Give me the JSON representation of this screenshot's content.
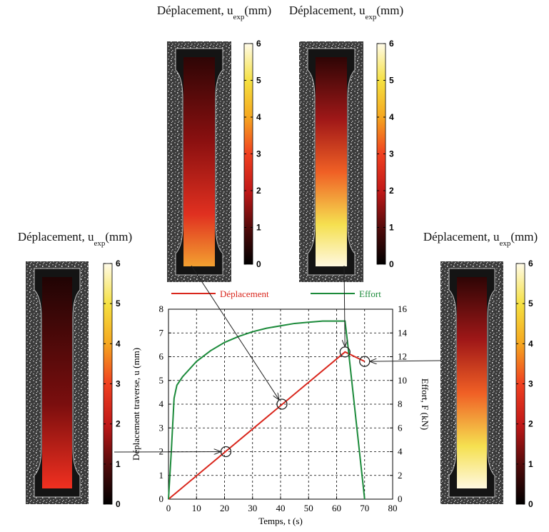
{
  "chart_data": {
    "type": "line",
    "x_label": "Temps, t (s)",
    "y_label": "Déplacement traverse, u (mm)",
    "y2_label": "Effort, F (kN)",
    "xlim": [
      0,
      80
    ],
    "xticks": [
      0,
      10,
      20,
      30,
      40,
      50,
      60,
      70,
      80
    ],
    "ylim": [
      0,
      8
    ],
    "yticks": [
      0,
      1,
      2,
      3,
      4,
      5,
      6,
      7,
      8
    ],
    "y2lim": [
      0,
      16
    ],
    "y2ticks": [
      0,
      2,
      4,
      6,
      8,
      10,
      12,
      14,
      16
    ],
    "grid": true,
    "series": [
      {
        "name": "Déplacement",
        "color": "#d9261c",
        "x": [
          0,
          63,
          70
        ],
        "values": [
          0,
          6.2,
          5.8
        ]
      },
      {
        "name": "Effort",
        "color": "#1b8a3a",
        "axis": "y2",
        "x": [
          0,
          1,
          2,
          3,
          5,
          10,
          15,
          20,
          25,
          30,
          35,
          40,
          45,
          50,
          55,
          60,
          63,
          64,
          70
        ],
        "values": [
          0,
          4,
          8.5,
          9.6,
          10.3,
          11.6,
          12.5,
          13.2,
          13.7,
          14.1,
          14.4,
          14.6,
          14.8,
          14.9,
          15.0,
          15.0,
          15.0,
          13,
          0
        ]
      }
    ],
    "markers": {
      "x": [
        20.5,
        40.5,
        63,
        70
      ],
      "y": [
        2,
        4,
        6.2,
        5.8
      ]
    }
  },
  "panels": [
    {
      "title": "Déplacement, u",
      "subscript": "exp",
      "unit": "(mm)",
      "clim": [
        0,
        6
      ],
      "ticks": [
        0,
        1,
        2,
        3,
        4,
        5,
        6
      ]
    },
    {
      "title": "Déplacement, u",
      "subscript": "exp",
      "unit": "(mm)",
      "clim": [
        0,
        6
      ],
      "ticks": [
        0,
        1,
        2,
        3,
        4,
        5,
        6
      ]
    },
    {
      "title": "Déplacement, u",
      "subscript": "exp",
      "unit": "(mm)",
      "clim": [
        0,
        6
      ],
      "ticks": [
        0,
        1,
        2,
        3,
        4,
        5,
        6
      ]
    },
    {
      "title": "Déplacement, u",
      "subscript": "exp",
      "unit": "(mm)",
      "clim": [
        0,
        6
      ],
      "ticks": [
        0,
        1,
        2,
        3,
        4,
        5,
        6
      ]
    }
  ]
}
